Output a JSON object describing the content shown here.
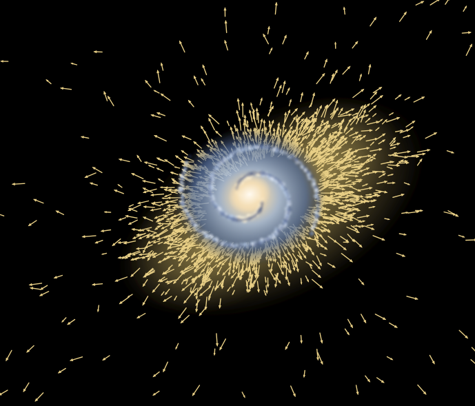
{
  "scene": {
    "subject": "spiral-galaxy",
    "background_color": "#000000",
    "arrow_color": "#e8cf86",
    "halo_color": "#8a7a45",
    "disc_core_color": "#fff4d8",
    "disc_arm_color": "#b7cbe6",
    "disc_edge_color": "#2a3f73"
  }
}
